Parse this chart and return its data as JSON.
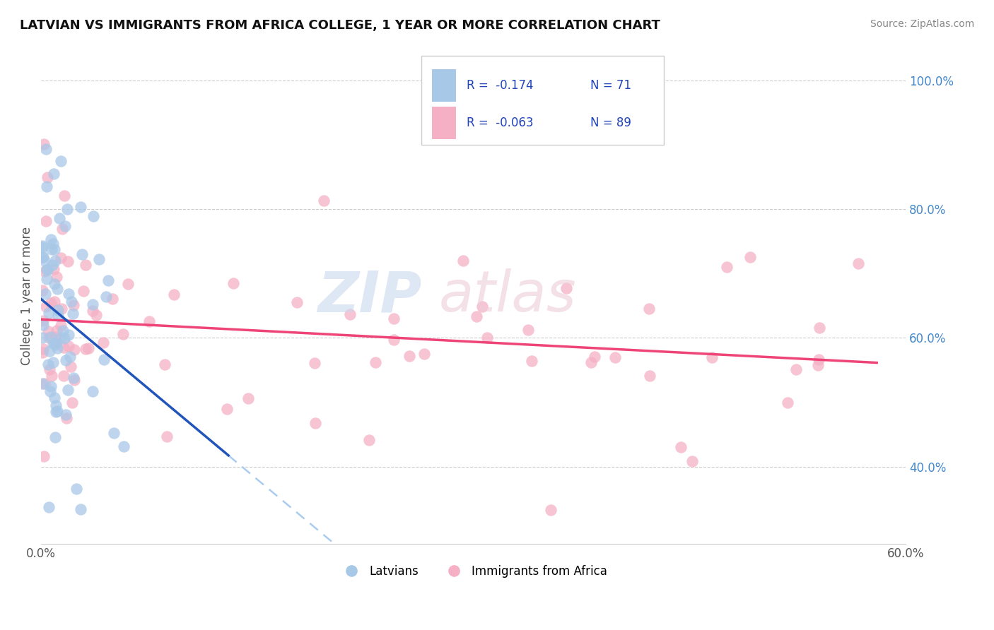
{
  "title": "LATVIAN VS IMMIGRANTS FROM AFRICA COLLEGE, 1 YEAR OR MORE CORRELATION CHART",
  "source": "Source: ZipAtlas.com",
  "ylabel": "College, 1 year or more",
  "xmin": 0.0,
  "xmax": 0.6,
  "ymin": 0.28,
  "ymax": 1.05,
  "yticks": [
    0.4,
    0.6,
    0.8,
    1.0
  ],
  "ytick_labels": [
    "40.0%",
    "60.0%",
    "80.0%",
    "100.0%"
  ],
  "latvian_color": "#a8c8e8",
  "africa_color": "#f5b0c5",
  "latvian_line_color": "#2255bb",
  "africa_line_color": "#ee4477",
  "dashed_line_color": "#aaccee",
  "watermark_zip": "ZIP",
  "watermark_atlas": "atlas",
  "legend_r_latvian": "R =  -0.174",
  "legend_n_latvian": "N = 71",
  "legend_r_africa": "R =  -0.063",
  "legend_n_africa": "N = 89"
}
